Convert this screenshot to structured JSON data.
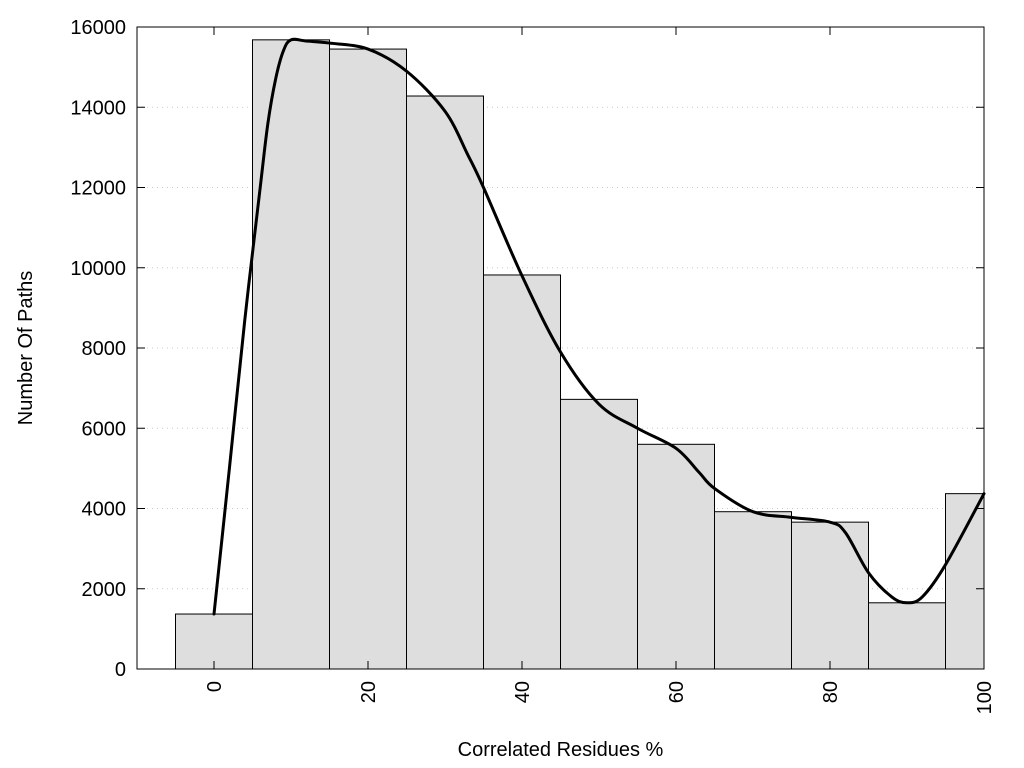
{
  "chart_data": {
    "type": "bar",
    "title": "",
    "xlabel": "Correlated Residues %",
    "ylabel": "Number Of Paths",
    "xlim": [
      -10,
      100
    ],
    "ylim": [
      0,
      16000
    ],
    "x_ticks": [
      0,
      20,
      40,
      60,
      80,
      100
    ],
    "y_ticks": [
      0,
      2000,
      4000,
      6000,
      8000,
      10000,
      12000,
      14000,
      16000
    ],
    "grid": "horizontal dotted",
    "bin_width": 10,
    "bars": [
      {
        "center": 0,
        "value": 1370
      },
      {
        "center": 10,
        "value": 15680
      },
      {
        "center": 20,
        "value": 15450
      },
      {
        "center": 30,
        "value": 14280
      },
      {
        "center": 40,
        "value": 9820
      },
      {
        "center": 50,
        "value": 6720
      },
      {
        "center": 60,
        "value": 5600
      },
      {
        "center": 70,
        "value": 3920
      },
      {
        "center": 80,
        "value": 3660
      },
      {
        "center": 90,
        "value": 1650
      },
      {
        "center": 100,
        "value": 4370
      }
    ],
    "smooth_curve": {
      "x": [
        0,
        2,
        4,
        6,
        7,
        8,
        9,
        10,
        12,
        15,
        20,
        25,
        30,
        33,
        35,
        40,
        45,
        50,
        55,
        60,
        63,
        65,
        70,
        75,
        80,
        82,
        85,
        88,
        90,
        92,
        95,
        100
      ],
      "y": [
        1370,
        5000,
        8700,
        12000,
        13600,
        14700,
        15400,
        15680,
        15650,
        15600,
        15450,
        14900,
        13900,
        12800,
        12000,
        9800,
        7900,
        6600,
        6000,
        5500,
        4900,
        4500,
        3920,
        3780,
        3660,
        3400,
        2400,
        1800,
        1650,
        1800,
        2600,
        4370
      ]
    }
  }
}
